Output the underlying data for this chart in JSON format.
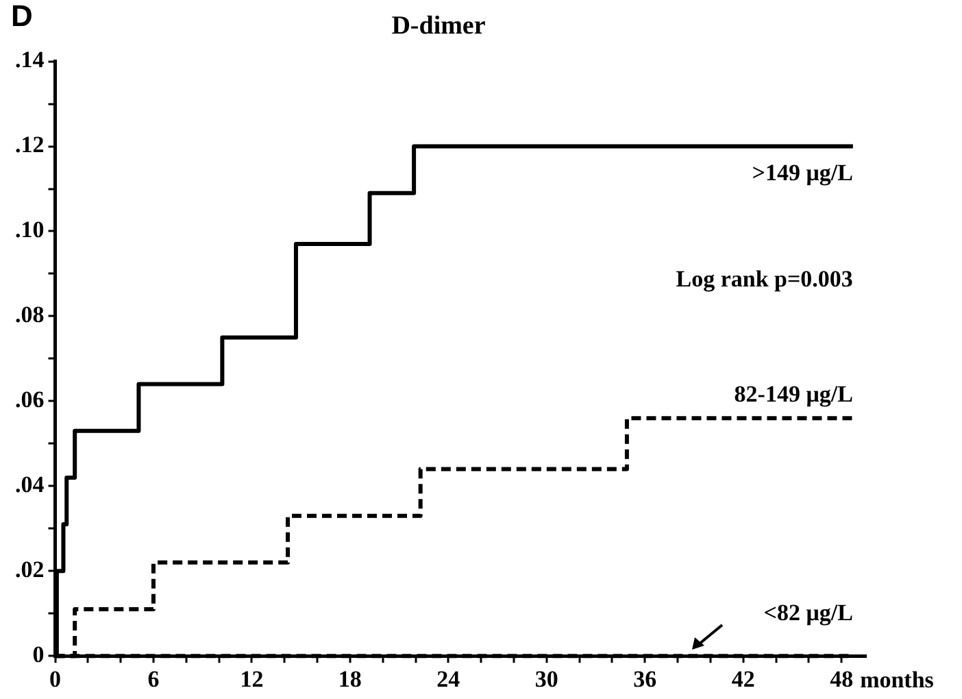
{
  "chart_data": {
    "type": "step",
    "title": "D-dimer",
    "xlabel": "months",
    "annotations": [
      "D",
      "Log rank p=0.003"
    ],
    "xlim": [
      0,
      49.5
    ],
    "ylim": [
      0,
      0.14
    ],
    "xticks": [
      0,
      {
        "value": 2,
        "label": null
      },
      {
        "value": 4,
        "label": null
      },
      6,
      {
        "value": 8,
        "label": null
      },
      {
        "value": 10,
        "label": null
      },
      12,
      {
        "value": 14,
        "label": null
      },
      {
        "value": 16,
        "label": null
      },
      18,
      {
        "value": 20,
        "label": null
      },
      {
        "value": 22,
        "label": null
      },
      24,
      {
        "value": 26,
        "label": null
      },
      {
        "value": 28,
        "label": null
      },
      30,
      {
        "value": 32,
        "label": null
      },
      {
        "value": 34,
        "label": null
      },
      36,
      {
        "value": 38,
        "label": null
      },
      {
        "value": 40,
        "label": null
      },
      42,
      {
        "value": 44,
        "label": null
      },
      {
        "value": 46,
        "label": null
      },
      48
    ],
    "yticks": [
      {
        "value": 0,
        "label": "0"
      },
      {
        "value": 0.01,
        "label": null
      },
      {
        "value": 0.02,
        "label": ".02"
      },
      {
        "value": 0.03,
        "label": null
      },
      {
        "value": 0.04,
        "label": ".04"
      },
      {
        "value": 0.05,
        "label": null
      },
      {
        "value": 0.06,
        "label": ".06"
      },
      {
        "value": 0.07,
        "label": null
      },
      {
        "value": 0.08,
        "label": ".08"
      },
      {
        "value": 0.09,
        "label": null
      },
      {
        "value": 0.1,
        "label": ".10"
      },
      {
        "value": 0.11,
        "label": null
      },
      {
        "value": 0.12,
        "label": ".12"
      },
      {
        "value": 0.13,
        "label": null
      },
      {
        "value": 0.14,
        "label": ".14"
      }
    ],
    "grid": false,
    "legend": false,
    "marker": "none",
    "series": [
      {
        "name": ">149 μg/L",
        "color": "#000000",
        "line_style": "solid",
        "x": [
          0,
          0.1,
          0.5,
          0.7,
          1.2,
          5.1,
          10.2,
          14.7,
          19.2,
          21.9,
          48.7
        ],
        "values": [
          0,
          0.02,
          0.031,
          0.042,
          0.053,
          0.064,
          0.075,
          0.097,
          0.109,
          0.12,
          0.12
        ]
      },
      {
        "name": "82-149 μg/L",
        "color": "#000000",
        "line_style": "dashed",
        "x": [
          0,
          1.2,
          6,
          14.2,
          22.3,
          34.9,
          48.7
        ],
        "values": [
          0,
          0.011,
          0.022,
          0.033,
          0.044,
          0.056,
          0.056
        ]
      },
      {
        "name": "<82 μg/L",
        "color": "#000000",
        "line_style": "dashed",
        "x": [
          0,
          48.7
        ],
        "values": [
          0,
          0
        ]
      }
    ]
  }
}
